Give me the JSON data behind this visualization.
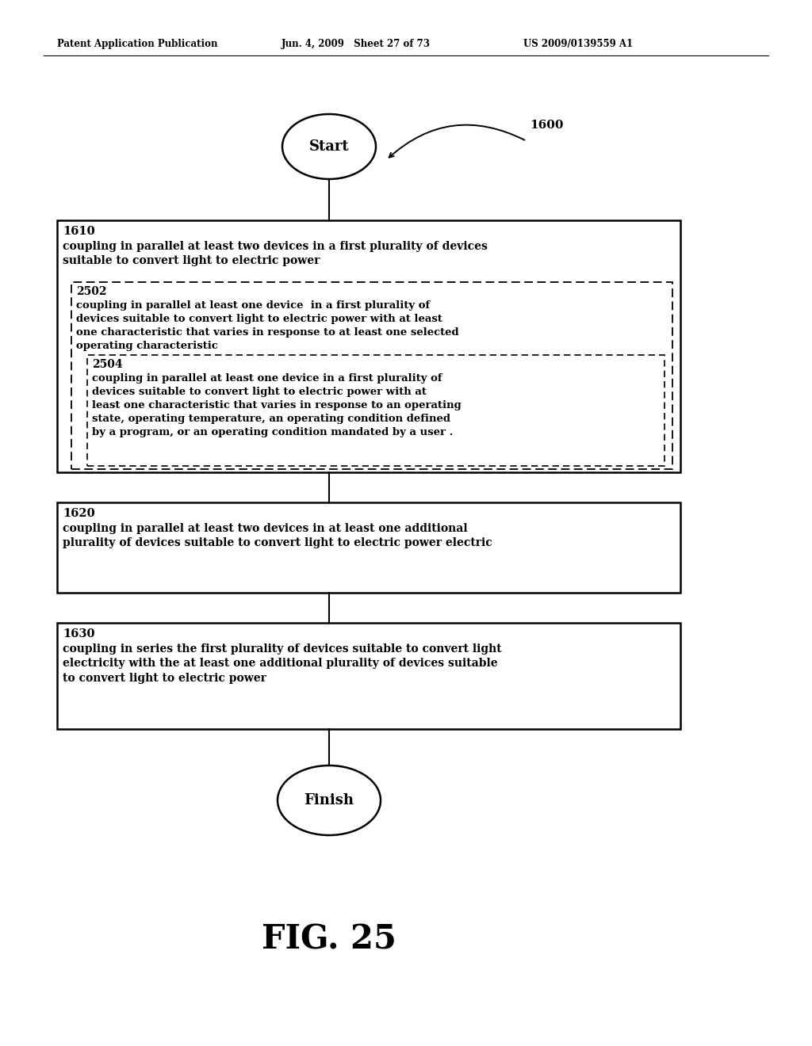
{
  "header_left": "Patent Application Publication",
  "header_mid": "Jun. 4, 2009   Sheet 27 of 73",
  "header_right": "US 2009/0139559 A1",
  "figure_label": "FIG. 25",
  "diagram_label": "1600",
  "start_label": "Start",
  "finish_label": "Finish",
  "box1610_label": "1610",
  "box1610_text": "coupling in parallel at least two devices in a first plurality of devices\nsuitable to convert light to electric power",
  "box2502_label": "2502",
  "box2502_text": "coupling in parallel at least one device  in a first plurality of\ndevices suitable to convert light to electric power with at least\none characteristic that varies in response to at least one selected\noperating characteristic",
  "box2504_label": "2504",
  "box2504_text": "coupling in parallel at least one device in a first plurality of\ndevices suitable to convert light to electric power with at\nleast one characteristic that varies in response to an operating\nstate, operating temperature, an operating condition defined\nby a program, or an operating condition mandated by a user .",
  "box1620_label": "1620",
  "box1620_text": "coupling in parallel at least two devices in at least one additional\nplurality of devices suitable to convert light to electric power electric",
  "box1630_label": "1630",
  "box1630_text": "coupling in series the first plurality of devices suitable to convert light\nelectricity with the at least one additional plurality of devices suitable\nto convert light to electric power",
  "bg_color": "#ffffff",
  "text_color": "#000000",
  "box_edge_color": "#000000",
  "dashed_color": "#000000"
}
